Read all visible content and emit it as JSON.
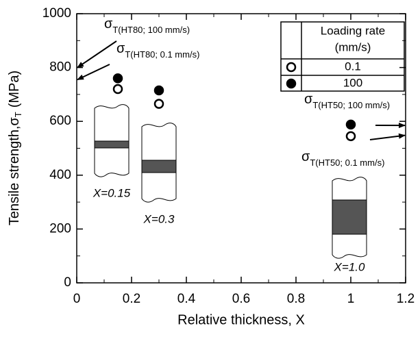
{
  "chart_data": {
    "type": "scatter",
    "xlabel": "Relative thickness, X",
    "ylabel_main": "Tensile strength,",
    "ylabel_symbol": "σ",
    "ylabel_sub": "T",
    "ylabel_unit": "(MPa)",
    "xlim": [
      0,
      1.2
    ],
    "xticks": [
      0,
      0.2,
      0.4,
      0.6,
      0.8,
      1,
      1.2
    ],
    "ylim": [
      0,
      1000
    ],
    "yticks": [
      0,
      200,
      400,
      600,
      800,
      1000
    ],
    "legend_title": [
      "Loading rate",
      "(mm/s)"
    ],
    "legend_position": "upper right",
    "series": [
      {
        "name": "0.1",
        "color": "#000000",
        "filled": false,
        "x": [
          0.15,
          0.3,
          1.0
        ],
        "values": [
          720,
          665,
          545
        ]
      },
      {
        "name": "100",
        "color": "#000000",
        "filled": true,
        "x": [
          0.15,
          0.3,
          1.0
        ],
        "values": [
          760,
          715,
          588
        ]
      }
    ],
    "annotations": [
      {
        "symbol": "σ",
        "subscript": "T(HT80; 100 mm/s)",
        "value": 800,
        "side": "left"
      },
      {
        "symbol": "σ",
        "subscript": "T(HT80; 0.1 mm/s)",
        "value": 755,
        "side": "left"
      },
      {
        "symbol": "σ",
        "subscript": "T(HT50; 100 mm/s)",
        "value": 585,
        "side": "right"
      },
      {
        "symbol": "σ",
        "subscript": "T(HT50; 0.1 mm/s)",
        "value": 548,
        "side": "right"
      }
    ],
    "specimen_labels": [
      "X=0.15",
      "X=0.3",
      "X=1.0"
    ]
  }
}
